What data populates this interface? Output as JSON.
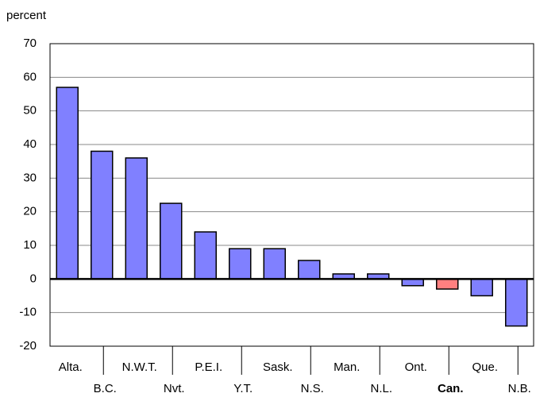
{
  "chart_data": {
    "type": "bar",
    "y_label": "percent",
    "categories": [
      "Alta.",
      "B.C.",
      "N.W.T.",
      "Nvt.",
      "P.E.I.",
      "Y.T.",
      "Sask.",
      "N.S.",
      "Man.",
      "N.L.",
      "Ont.",
      "Can.",
      "Que.",
      "N.B."
    ],
    "values": [
      57,
      38,
      36,
      22.5,
      14,
      9,
      9,
      5.5,
      1.5,
      1.5,
      -2,
      -3,
      -5,
      -14
    ],
    "color": "#8080ff",
    "highlight": "Can.",
    "highlight_color": "#ff8080",
    "ylim": [
      -20,
      70
    ],
    "yticks": [
      -20,
      -10,
      0,
      10,
      20,
      30,
      40,
      50,
      60,
      70
    ],
    "grid": true
  }
}
